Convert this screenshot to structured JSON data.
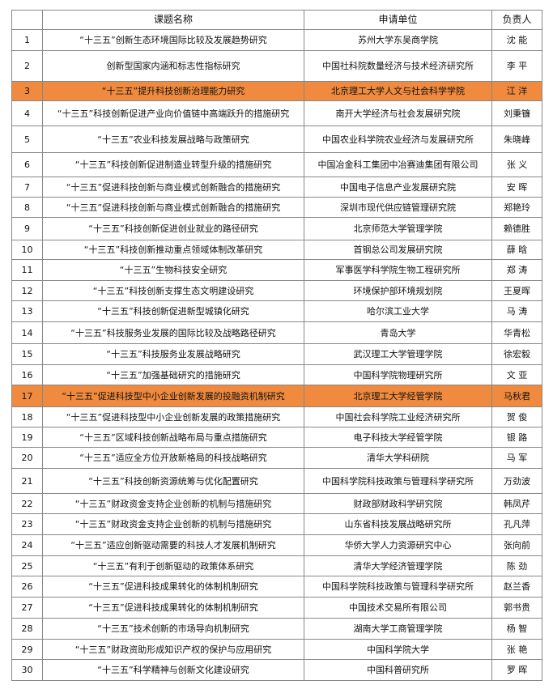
{
  "highlight_color": "#ef8a3e",
  "table": {
    "header": [
      "课题名称",
      "申请单位",
      "负责人"
    ],
    "rows": [
      {
        "no": "1",
        "title": "“十三五”创新生态环境国际比较及发展趋势研究",
        "unit": "苏州大学东吴商学院",
        "leader": "沈 能"
      },
      {
        "no": "2",
        "title": "创新型国家内涵和标志性指标研究",
        "unit": "中国社科院数量经济与技术经济研究所",
        "leader": "李 平"
      },
      {
        "no": "3",
        "title": "“十三五”提升科技创新治理能力研究",
        "unit": "北京理工大学人文与社会科学学院",
        "leader": "江 洋",
        "highlight": true
      },
      {
        "no": "4",
        "title": "“十三五”科技创新促进产业向价值链中高端跃升的措施研究",
        "unit": "南开大学经济与社会发展研究院",
        "leader": "刘秉镰"
      },
      {
        "no": "5",
        "title": "“十三五”农业科技发展战略与政策研究",
        "unit": "中国农业科学院农业经济与发展研究所",
        "leader": "朱晓峰"
      },
      {
        "no": "6",
        "title": "“十三五”科技创新促进制造业转型升级的措施研究",
        "unit": "中国冶金科工集团中冶赛迪集团有限公司",
        "leader": "张 义"
      },
      {
        "no": "7",
        "title": "“十三五”促进科技创新与商业模式创新融合的措施研究",
        "unit": "中国电子信息产业发展研究院",
        "leader": "安 晖"
      },
      {
        "no": "8",
        "title": "“十三五”促进科技创新与商业模式创新融合的措施研究",
        "unit": "深圳市现代供应链管理研究院",
        "leader": "郑艳玲"
      },
      {
        "no": "9",
        "title": "“十三五”科技创新促进创业就业的路径研究",
        "unit": "北京师范大学管理学院",
        "leader": "赖德胜"
      },
      {
        "no": "10",
        "title": "“十三五”科技创新推动重点领域体制改革研究",
        "unit": "首钢总公司发展研究院",
        "leader": "薛 晗"
      },
      {
        "no": "11",
        "title": "“十三五”生物科技安全研究",
        "unit": "军事医学科学院生物工程研究所",
        "leader": "郑 涛"
      },
      {
        "no": "12",
        "title": "“十三五”科技创新支撑生态文明建设研究",
        "unit": "环境保护部环境规划院",
        "leader": "王夏晖"
      },
      {
        "no": "13",
        "title": "“十三五”科技创新促进新型城镇化研究",
        "unit": "哈尔滨工业大学",
        "leader": "马 涛"
      },
      {
        "no": "14",
        "title": "“十三五”科技服务业发展的国际比较及战略路径研究",
        "unit": "青岛大学",
        "leader": "华青松"
      },
      {
        "no": "15",
        "title": "“十三五”科技服务业发展战略研究",
        "unit": "武汉理工大学管理学院",
        "leader": "徐宏毅"
      },
      {
        "no": "16",
        "title": "“十三五”加强基础研究的措施研究",
        "unit": "中国科学院物理研究所",
        "leader": "文 亚"
      },
      {
        "no": "17",
        "title": "“十三五”促进科技型中小企业创新发展的投融资机制研究",
        "unit": "北京理工大学经管学院",
        "leader": "马秋君",
        "highlight": true
      },
      {
        "no": "18",
        "title": "“十三五”促进科技型中小企业创新发展的政策措施研究",
        "unit": "中国社会科学院工业经济研究所",
        "leader": "贺 俊"
      },
      {
        "no": "19",
        "title": "“十三五”区域科技创新战略布局与重点措施研究",
        "unit": "电子科技大学经管学院",
        "leader": "银 路"
      },
      {
        "no": "20",
        "title": "“十三五”适应全方位开放新格局的科技战略研究",
        "unit": "清华大学科研院",
        "leader": "马 军"
      },
      {
        "no": "21",
        "title": "“十三五”科技创新资源统筹与优化配置研究",
        "unit": "中国科学院科技政策与管理科学研究所",
        "leader": "万劲波"
      },
      {
        "no": "22",
        "title": "“十三五”财政资金支持企业创新的机制与措施研究",
        "unit": "财政部财政科学研究院",
        "leader": "韩凤芹"
      },
      {
        "no": "23",
        "title": "“十三五”财政资金支持企业创新的机制与措施研究",
        "unit": "山东省科技发展战略研究所",
        "leader": "孔凡萍"
      },
      {
        "no": "24",
        "title": "“十三五”适应创新驱动需要的科技人才发展机制研究",
        "unit": "华侨大学人力资源研究中心",
        "leader": "张向前"
      },
      {
        "no": "25",
        "title": "“十三五”有利于创新驱动的政策体系研究",
        "unit": "清华大学经济管理学院",
        "leader": "陈 劲"
      },
      {
        "no": "26",
        "title": "“十三五”促进科技成果转化的体制机制研究",
        "unit": "中国科学院科技政策与管理科学研究所",
        "leader": "赵兰香"
      },
      {
        "no": "27",
        "title": "“十三五”促进科技成果转化的体制机制研究",
        "unit": "中国技术交易所有限公司",
        "leader": "郭书贵"
      },
      {
        "no": "28",
        "title": "“十三五”技术创新的市场导向机制研究",
        "unit": "湖南大学工商管理学院",
        "leader": "杨 智"
      },
      {
        "no": "29",
        "title": "“十三五”财政资助形成知识产权的保护与应用研究",
        "unit": "中国科学院大学",
        "leader": "张 艳"
      },
      {
        "no": "30",
        "title": "“十三五”科学精神与创新文化建设研究",
        "unit": "中国科普研究所",
        "leader": "罗 晖"
      }
    ]
  }
}
